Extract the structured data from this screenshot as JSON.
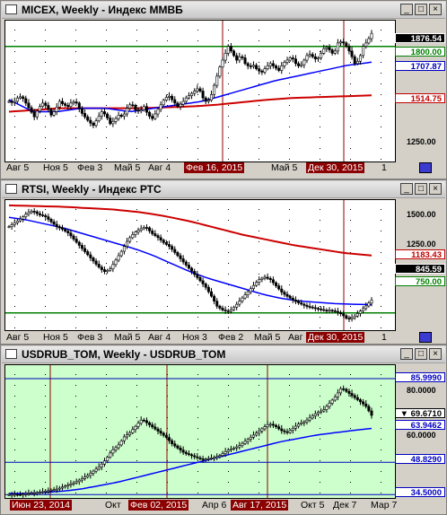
{
  "windows": [
    {
      "title": "MICEX, Weekly - Индекс ММВБ",
      "axis_labels": [
        "Авг 5",
        "Ноя 5",
        "Фев 3",
        "Май 5",
        "Авг 4",
        "Фев 16, 2015",
        "Май 5",
        "Дек 30, 2015",
        "1"
      ],
      "scale_labels": [
        "1250.00"
      ],
      "value_tags": [
        {
          "text": "1876.54",
          "bg": "#000000",
          "fg": "#ffffff"
        },
        {
          "text": "1800.00",
          "bg": "#ffffff",
          "fg": "#008000"
        },
        {
          "text": "1707.87",
          "bg": "#ffffff",
          "fg": "#0000c0"
        },
        {
          "text": "1514.75",
          "bg": "#ffffff",
          "fg": "#c00000"
        }
      ],
      "chart_data": {
        "type": "line",
        "y_range": [
          1130,
          1950
        ],
        "price_weekly_approx": [
          1480,
          1470,
          1500,
          1510,
          1470,
          1430,
          1390,
          1440,
          1470,
          1450,
          1400,
          1430,
          1480,
          1460,
          1450,
          1480,
          1470,
          1420,
          1390,
          1360,
          1340,
          1380,
          1420,
          1400,
          1350,
          1370,
          1400,
          1390,
          1440,
          1470,
          1430,
          1420,
          1450,
          1400,
          1380,
          1420,
          1460,
          1500,
          1510,
          1480,
          1450,
          1470,
          1500,
          1520,
          1540,
          1560,
          1500,
          1470,
          1520,
          1600,
          1680,
          1740,
          1800,
          1760,
          1720,
          1750,
          1700,
          1680,
          1690,
          1660,
          1650,
          1680,
          1700,
          1680,
          1660,
          1700,
          1720,
          1740,
          1700,
          1680,
          1720,
          1760,
          1740,
          1720,
          1760,
          1800,
          1780,
          1750,
          1820,
          1830,
          1800,
          1760,
          1700,
          1720,
          1800,
          1830,
          1876
        ],
        "ma_blue": [
          1490,
          1420,
          1420,
          1440,
          1440,
          1420,
          1440,
          1460,
          1480,
          1520,
          1560,
          1600,
          1630,
          1660,
          1690,
          1708
        ],
        "ma_red": [
          1420,
          1430,
          1440,
          1440,
          1440,
          1440,
          1445,
          1450,
          1460,
          1475,
          1490,
          1500,
          1505,
          1510,
          1515
        ],
        "hlines": [
          1800
        ],
        "vlines_labels": [
          "Фев 16, 2015",
          "Дек 30, 2015"
        ]
      }
    },
    {
      "title": "RTSI, Weekly - Индекс РТС",
      "axis_labels": [
        "Авг 5",
        "Ноя 5",
        "Фев 3",
        "Май 5",
        "Авг 4",
        "Ноя 3",
        "Фев 2",
        "Май 5",
        "Авг",
        "Дек 30, 2015",
        "1"
      ],
      "scale_labels": [
        "1500.00",
        "1250.00"
      ],
      "value_tags": [
        {
          "text": "1183.43",
          "bg": "#ffffff",
          "fg": "#c00000"
        },
        {
          "text": "845.59",
          "bg": "#000000",
          "fg": "#ffffff"
        },
        {
          "text": "750.00",
          "bg": "#ffffff",
          "fg": "#008000"
        }
      ],
      "chart_data": {
        "type": "line",
        "y_range": [
          620,
          1600
        ],
        "price_weekly_approx": [
          1400,
          1430,
          1460,
          1500,
          1520,
          1490,
          1480,
          1440,
          1400,
          1380,
          1350,
          1300,
          1250,
          1200,
          1150,
          1100,
          1060,
          1080,
          1150,
          1220,
          1300,
          1350,
          1380,
          1400,
          1350,
          1320,
          1280,
          1250,
          1200,
          1150,
          1100,
          1050,
          1000,
          950,
          880,
          800,
          770,
          760,
          800,
          850,
          900,
          950,
          1000,
          1020,
          1000,
          950,
          900,
          870,
          840,
          820,
          800,
          790,
          780,
          770,
          770,
          760,
          740,
          700,
          720,
          760,
          800,
          846
        ],
        "ma_blue": [
          1470,
          1450,
          1420,
          1390,
          1350,
          1310,
          1270,
          1230,
          1180,
          1120,
          1060,
          1010,
          970,
          930,
          890,
          860,
          840,
          830,
          820,
          815,
          812
        ],
        "ma_red": [
          1560,
          1555,
          1550,
          1540,
          1530,
          1510,
          1480,
          1440,
          1390,
          1340,
          1300,
          1260,
          1230,
          1200,
          1183
        ],
        "hlines": [
          750
        ],
        "vlines_labels": [
          "Дек 30, 2015"
        ]
      }
    },
    {
      "title": "USDRUB_TOM, Weekly - USDRUB_TOM",
      "axis_labels": [
        "Июн 23, 2014",
        "Окт",
        "Фев 02, 2015",
        "Апр 6",
        "Авг 17, 2015",
        "Окт 5",
        "Дек 7",
        "Мар 7"
      ],
      "scale_labels": [
        "80.0000",
        "60.0000"
      ],
      "value_tags": [
        {
          "text": "85.9990",
          "bg": "#ffffff",
          "fg": "#0000c0"
        },
        {
          "text": "▼ 69.6710",
          "bg": "#ffffff",
          "fg": "#000000"
        },
        {
          "text": "63.9462",
          "bg": "#ffffff",
          "fg": "#0000c0"
        },
        {
          "text": "48.8290",
          "bg": "#ffffff",
          "fg": "#0000c0"
        },
        {
          "text": "34.5000",
          "bg": "#ffffff",
          "fg": "#0000c0"
        }
      ],
      "chart_data": {
        "type": "line",
        "y_range": [
          33,
          92
        ],
        "price_weekly_approx": [
          34.5,
          34.6,
          34.5,
          35,
          35.2,
          35.5,
          36,
          36.5,
          37,
          38,
          39,
          40,
          41.5,
          43,
          45,
          47,
          50,
          54,
          56,
          60,
          62,
          65,
          68,
          66,
          64,
          62,
          60,
          57,
          55,
          53,
          52,
          51,
          50,
          50.5,
          51,
          52,
          54,
          55,
          56,
          58,
          60,
          62,
          64,
          66,
          65,
          63,
          62,
          64,
          66,
          67,
          69,
          71,
          72,
          75,
          78,
          82,
          80,
          78,
          76,
          74,
          69.67
        ],
        "ma_blue": [
          35,
          35,
          35.5,
          36,
          37,
          38.5,
          40,
          42,
          44,
          46,
          48,
          50,
          52,
          54,
          56,
          58,
          59.5,
          61,
          62,
          63,
          63.9
        ],
        "hlines_labels": [
          "48.8290",
          "34.5000"
        ],
        "vlines_labels": [
          "Июн 23, 2014",
          "Фев 02, 2015",
          "Авг 17, 2015"
        ]
      }
    }
  ],
  "buttons": {
    "minimize": "_",
    "maximize": "□",
    "close": "×"
  },
  "colors": {
    "plot_bg_white": "#ffffff",
    "plot_bg_green": "#ccffcc",
    "price": "#000000",
    "ma_blue": "#0000ff",
    "ma_red": "#cc0000",
    "hline": "#008000",
    "vline": "#8b0000"
  }
}
